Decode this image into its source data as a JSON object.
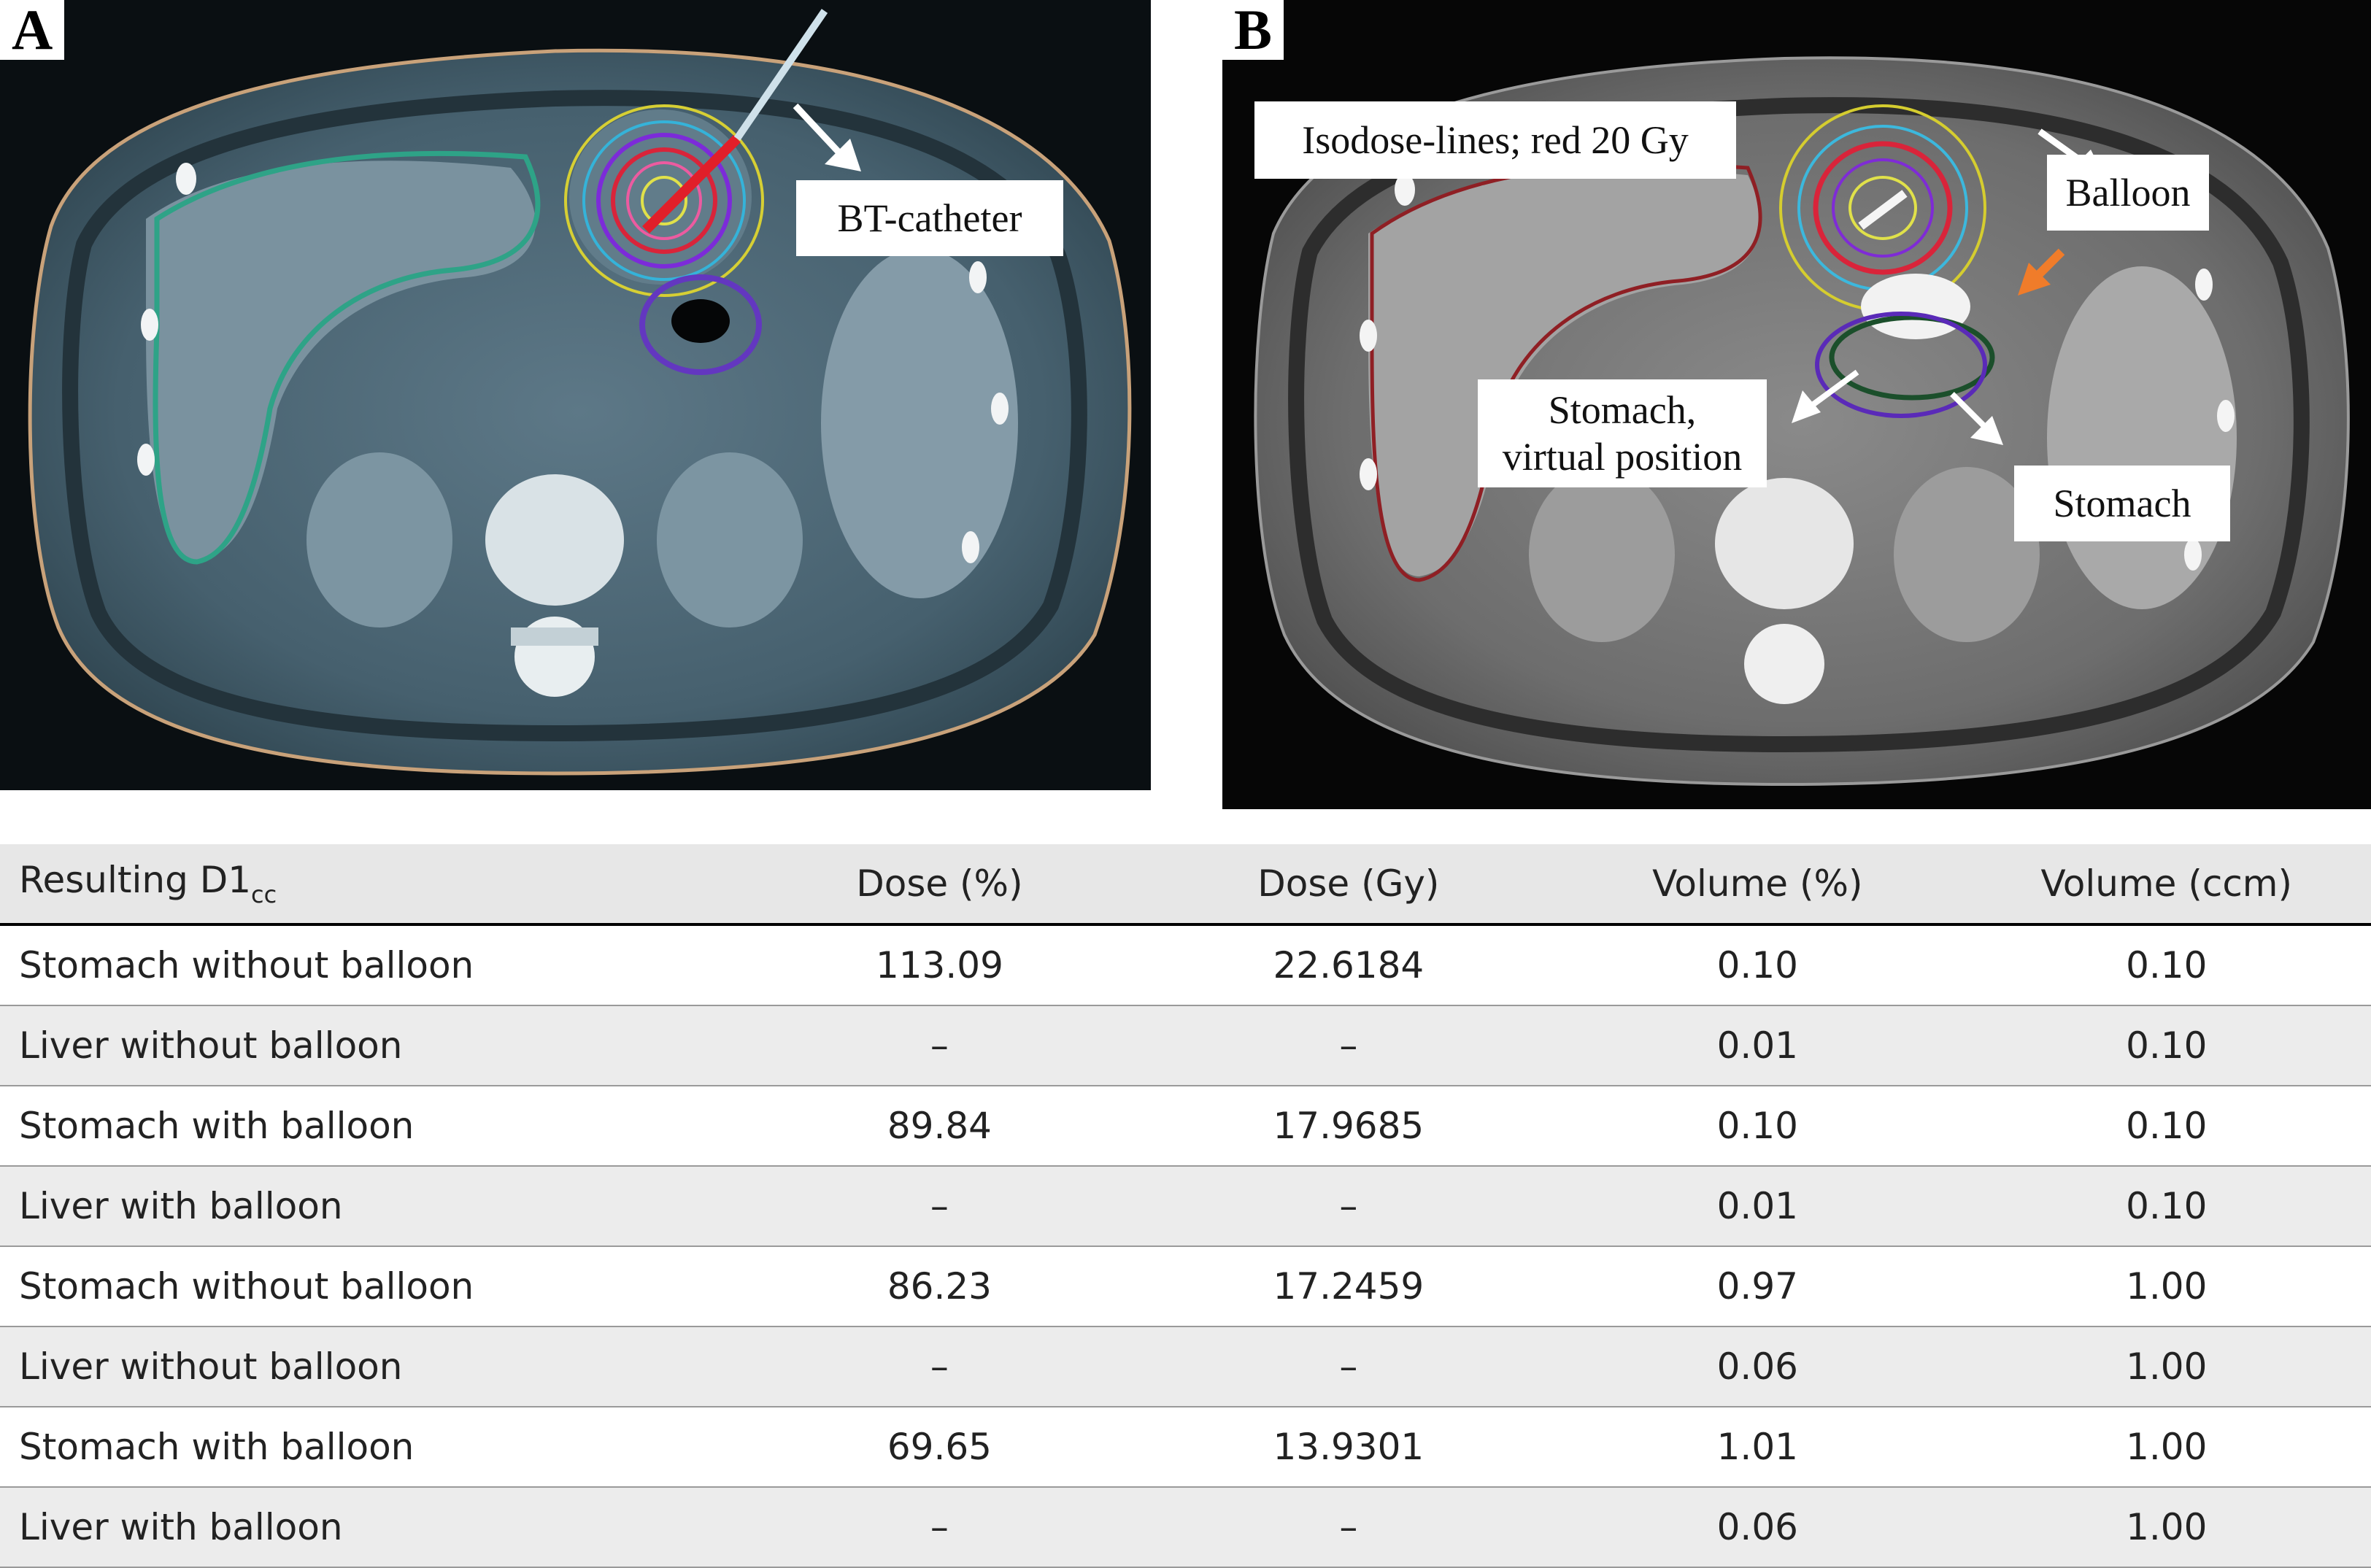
{
  "panel_a": {
    "letter": "A",
    "label_catheter": "BT-catheter"
  },
  "panel_b": {
    "letter": "B",
    "label_isodose": "Isodose-lines; red 20 Gy",
    "label_balloon": "Balloon",
    "label_stomach_virtual_1": "Stomach,",
    "label_stomach_virtual_2": "virtual position",
    "label_stomach": "Stomach"
  },
  "table": {
    "headers": {
      "col1_main": "Resulting D1",
      "col1_sub": "cc",
      "col2": "Dose (%)",
      "col3": "Dose (Gy)",
      "col4": "Volume (%)",
      "col5": "Volume (ccm)"
    },
    "rows": [
      {
        "label": "Stomach without balloon",
        "dose_pct": "113.09",
        "dose_gy": "22.6184",
        "vol_pct": "0.10",
        "vol_ccm": "0.10"
      },
      {
        "label": "Liver without balloon",
        "dose_pct": "–",
        "dose_gy": "–",
        "vol_pct": "0.01",
        "vol_ccm": "0.10"
      },
      {
        "label": "Stomach with balloon",
        "dose_pct": "89.84",
        "dose_gy": "17.9685",
        "vol_pct": "0.10",
        "vol_ccm": "0.10"
      },
      {
        "label": "Liver with balloon",
        "dose_pct": "–",
        "dose_gy": "–",
        "vol_pct": "0.01",
        "vol_ccm": "0.10"
      },
      {
        "label": "Stomach without balloon",
        "dose_pct": "86.23",
        "dose_gy": "17.2459",
        "vol_pct": "0.97",
        "vol_ccm": "1.00"
      },
      {
        "label": "Liver without balloon",
        "dose_pct": "–",
        "dose_gy": "–",
        "vol_pct": "0.06",
        "vol_ccm": "1.00"
      },
      {
        "label": "Stomach with balloon",
        "dose_pct": "69.65",
        "dose_gy": "13.9301",
        "vol_pct": "1.01",
        "vol_ccm": "1.00"
      },
      {
        "label": "Liver with balloon",
        "dose_pct": "–",
        "dose_gy": "–",
        "vol_pct": "0.06",
        "vol_ccm": "1.00"
      }
    ]
  }
}
